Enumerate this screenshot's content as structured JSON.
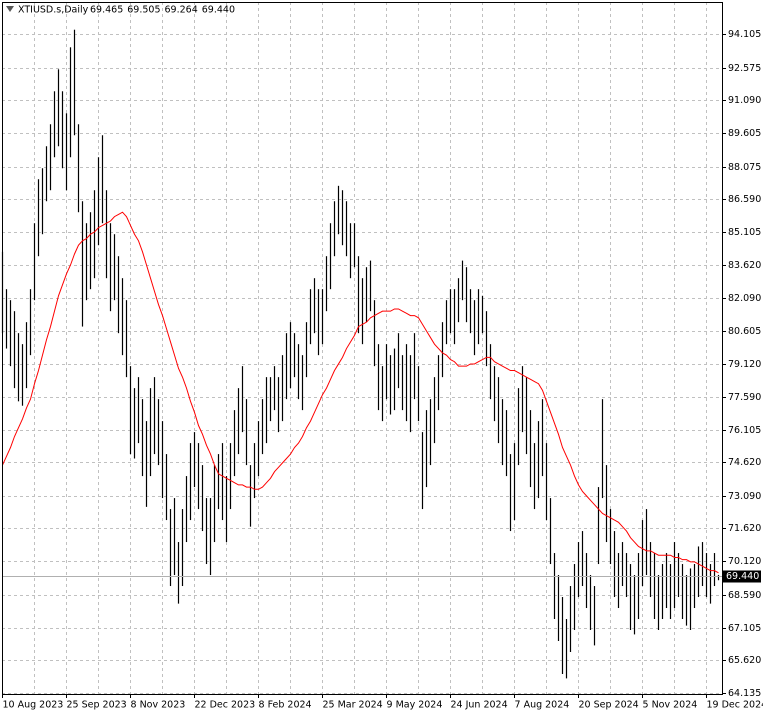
{
  "chart_data": {
    "type": "ohlc",
    "title": "XTIUSD.s,Daily",
    "ohlc_header": [
      69.465,
      69.505,
      69.264,
      {
        "value": 69.44,
        "label": "69.440"
      }
    ],
    "last_price": {
      "value": 69.44,
      "label": "69.440"
    },
    "ylim": [
      64.09,
      95.56
    ],
    "yticks": [
      94.105,
      92.575,
      {
        "value": 91.09,
        "label": "91.090"
      },
      89.605,
      88.075,
      {
        "value": 86.59,
        "label": "86.590"
      },
      85.105,
      {
        "value": 83.62,
        "label": "83.620"
      },
      {
        "value": 82.09,
        "label": "82.090"
      },
      80.605,
      {
        "value": 79.12,
        "label": "79.120"
      },
      {
        "value": 77.59,
        "label": "77.590"
      },
      76.105,
      {
        "value": 74.62,
        "label": "74.620"
      },
      {
        "value": 73.09,
        "label": "73.090"
      },
      {
        "value": 71.62,
        "label": "71.620"
      },
      {
        "value": 70.12,
        "label": "70.120"
      },
      {
        "value": 68.59,
        "label": "68.590"
      },
      67.105,
      {
        "value": 65.62,
        "label": "65.620"
      },
      64.135
    ],
    "grid": true,
    "bar_color": "#000000",
    "categories": [
      "10 Aug 2023",
      null,
      null,
      null,
      null,
      null,
      null,
      null,
      null,
      null,
      null,
      null,
      null,
      null,
      null,
      null,
      "25 Sep 2023",
      null,
      null,
      null,
      null,
      null,
      null,
      null,
      null,
      null,
      null,
      null,
      null,
      null,
      null,
      null,
      "8 Nov 2023",
      null,
      null,
      null,
      null,
      null,
      null,
      null,
      null,
      null,
      null,
      null,
      null,
      null,
      null,
      null,
      "22 Dec 2023",
      null,
      null,
      null,
      null,
      null,
      null,
      null,
      null,
      null,
      null,
      null,
      null,
      null,
      null,
      null,
      "8 Feb 2024",
      null,
      null,
      null,
      null,
      null,
      null,
      null,
      null,
      null,
      null,
      null,
      null,
      null,
      null,
      null,
      "25 Mar 2024",
      null,
      null,
      null,
      null,
      null,
      null,
      null,
      null,
      null,
      null,
      null,
      null,
      null,
      null,
      null,
      "9 May 2024",
      null,
      null,
      null,
      null,
      null,
      null,
      null,
      null,
      null,
      null,
      null,
      null,
      null,
      null,
      null,
      "24 Jun 2024",
      null,
      null,
      null,
      null,
      null,
      null,
      null,
      null,
      null,
      null,
      null,
      null,
      null,
      null,
      null,
      "7 Aug 2024",
      null,
      null,
      null,
      null,
      null,
      null,
      null,
      null,
      null,
      null,
      null,
      null,
      null,
      null,
      null,
      "20 Sep 2024",
      null,
      null,
      null,
      null,
      null,
      null,
      null,
      null,
      null,
      null,
      null,
      null,
      null,
      null,
      null,
      "5 Nov 2024",
      null,
      null,
      null,
      null,
      null,
      null,
      null,
      null,
      null,
      null,
      null,
      null,
      null,
      null,
      null,
      "19 Dec 2024",
      null,
      null,
      null
    ],
    "lows": [
      80.5,
      79.8,
      79.0,
      78.0,
      77.4,
      77.2,
      78.0,
      79.5,
      82.0,
      84.0,
      85.0,
      86.5,
      87.0,
      88.5,
      89.0,
      88.0,
      87.0,
      88.5,
      89.5,
      86.0,
      80.8,
      82.0,
      82.5,
      83.0,
      84.5,
      85.5,
      83.0,
      81.5,
      82.0,
      80.5,
      79.5,
      78.5,
      75.0,
      74.8,
      75.5,
      74.0,
      72.6,
      74.0,
      75.0,
      74.5,
      73.0,
      72.0,
      69.0,
      69.5,
      68.2,
      69.0,
      71.0,
      72.0,
      73.5,
      72.5,
      71.5,
      70.0,
      69.5,
      71.0,
      72.5,
      72.0,
      71.0,
      72.5,
      74.0,
      75.0,
      76.0,
      74.5,
      71.7,
      73.0,
      74.0,
      75.0,
      75.5,
      76.5,
      77.0,
      76.0,
      76.5,
      77.5,
      78.0,
      78.5,
      77.5,
      77.0,
      78.5,
      80.0,
      80.5,
      79.5,
      80.0,
      81.5,
      82.5,
      84.0,
      85.0,
      84.5,
      84.0,
      83.0,
      83.5,
      80.5,
      80.0,
      81.0,
      81.5,
      79.0,
      77.0,
      76.5,
      77.5,
      76.8,
      77.0,
      78.0,
      77.0,
      76.5,
      76.0,
      77.5,
      76.5,
      72.5,
      73.5,
      74.5,
      75.5,
      77.0,
      78.5,
      80.0,
      80.5,
      80.0,
      81.0,
      82.0,
      81.0,
      80.5,
      79.5,
      80.0,
      80.5,
      79.0,
      77.5,
      76.5,
      75.5,
      74.5,
      74.0,
      71.5,
      72.0,
      74.5,
      76.0,
      75.0,
      73.5,
      72.5,
      73.0,
      74.0,
      72.0,
      70.0,
      67.5,
      66.5,
      65.0,
      64.8,
      66.0,
      67.0,
      68.5,
      69.0,
      68.0,
      67.0,
      66.3,
      70.0,
      73.0,
      71.0,
      70.0,
      68.5,
      68.0,
      69.0,
      68.5,
      67.0,
      66.8,
      67.5,
      69.0,
      69.5,
      68.5,
      67.5,
      67.0,
      67.5,
      68.0,
      67.5,
      68.0,
      68.5,
      67.5,
      67.2,
      67.0,
      68.0,
      68.5,
      69.0,
      68.5,
      68.2,
      69.0,
      69.264
    ],
    "highs": [
      84.2,
      82.5,
      82.0,
      81.5,
      80.5,
      80.0,
      81.0,
      82.5,
      85.5,
      87.5,
      88.0,
      89.0,
      90.0,
      91.5,
      92.5,
      91.5,
      90.5,
      93.5,
      94.3,
      90.0,
      86.5,
      85.5,
      86.0,
      87.0,
      88.5,
      89.5,
      87.0,
      85.5,
      85.0,
      84.0,
      83.0,
      82.0,
      79.0,
      78.0,
      78.5,
      77.5,
      76.5,
      78.0,
      78.5,
      77.5,
      76.5,
      75.0,
      72.5,
      73.0,
      71.0,
      72.5,
      74.0,
      75.5,
      76.0,
      75.5,
      74.5,
      73.0,
      73.0,
      74.5,
      75.0,
      75.5,
      74.0,
      75.5,
      77.0,
      78.0,
      79.0,
      77.5,
      74.5,
      75.5,
      76.5,
      77.5,
      78.5,
      78.5,
      79.0,
      78.5,
      79.5,
      80.5,
      81.0,
      80.5,
      80.0,
      79.5,
      81.0,
      82.5,
      83.0,
      82.5,
      82.5,
      84.0,
      85.5,
      86.5,
      87.2,
      87.0,
      86.5,
      85.5,
      85.5,
      84.0,
      83.0,
      83.5,
      83.8,
      82.0,
      80.0,
      79.0,
      80.0,
      79.5,
      79.8,
      80.5,
      79.5,
      80.0,
      79.5,
      80.5,
      79.0,
      76.0,
      77.0,
      77.5,
      78.5,
      79.5,
      81.0,
      82.0,
      82.5,
      82.5,
      83.0,
      83.8,
      83.5,
      82.5,
      82.0,
      82.5,
      82.2,
      81.5,
      80.0,
      79.0,
      78.5,
      77.5,
      77.0,
      75.0,
      75.5,
      78.0,
      79.0,
      78.5,
      77.0,
      75.5,
      76.5,
      77.5,
      75.5,
      73.0,
      70.5,
      69.5,
      68.5,
      67.5,
      69.0,
      70.0,
      71.0,
      71.5,
      70.5,
      69.5,
      69.0,
      73.5,
      77.5,
      74.5,
      72.5,
      71.5,
      70.5,
      71.0,
      70.5,
      70.0,
      69.5,
      70.5,
      72.0,
      72.5,
      71.0,
      70.5,
      69.5,
      70.0,
      70.5,
      70.0,
      71.0,
      70.5,
      70.0,
      69.5,
      69.8,
      70.0,
      70.8,
      71.0,
      70.5,
      70.0,
      70.5,
      69.505
    ],
    "ma": {
      "color": "#ff0000",
      "values": [
        74.5,
        74.9,
        75.3,
        75.8,
        76.2,
        76.6,
        77.1,
        77.5,
        78.2,
        78.8,
        79.5,
        80.2,
        80.8,
        81.5,
        82.2,
        82.7,
        83.2,
        83.6,
        84.1,
        84.5,
        84.7,
        84.8,
        85.0,
        85.1,
        85.3,
        85.4,
        85.5,
        85.6,
        85.8,
        85.9,
        86.0,
        85.8,
        85.4,
        85.0,
        84.7,
        84.2,
        83.6,
        83.0,
        82.4,
        81.8,
        81.3,
        80.7,
        80.1,
        79.5,
        78.9,
        78.5,
        78.0,
        77.4,
        76.9,
        76.3,
        75.9,
        75.4,
        75.0,
        74.5,
        74.1,
        74.0,
        73.9,
        73.8,
        73.7,
        73.6,
        73.6,
        73.5,
        73.5,
        73.4,
        73.4,
        73.5,
        73.7,
        73.9,
        74.2,
        74.4,
        74.6,
        74.8,
        75.0,
        75.3,
        75.5,
        75.8,
        76.2,
        76.5,
        76.9,
        77.3,
        77.7,
        78.0,
        78.4,
        78.8,
        79.1,
        79.4,
        79.8,
        80.1,
        80.4,
        80.8,
        80.9,
        81.0,
        81.2,
        81.3,
        81.4,
        81.5,
        81.5,
        81.5,
        81.6,
        81.6,
        81.5,
        81.4,
        81.3,
        81.3,
        81.2,
        80.9,
        80.6,
        80.3,
        80.0,
        79.8,
        79.6,
        79.5,
        79.3,
        79.2,
        79.0,
        79.0,
        79.0,
        79.1,
        79.1,
        79.2,
        79.3,
        79.4,
        79.4,
        79.2,
        79.1,
        79.0,
        78.9,
        78.8,
        78.8,
        78.7,
        78.6,
        78.5,
        78.4,
        78.3,
        78.2,
        77.9,
        77.4,
        76.9,
        76.4,
        75.9,
        75.3,
        74.9,
        74.5,
        74.0,
        73.6,
        73.3,
        73.1,
        72.9,
        72.7,
        72.5,
        72.3,
        72.2,
        72.1,
        72.0,
        71.9,
        71.7,
        71.5,
        71.2,
        71.0,
        70.8,
        70.7,
        70.6,
        70.6,
        70.5,
        70.4,
        70.4,
        70.4,
        70.4,
        70.3,
        70.3,
        70.2,
        70.2,
        70.1,
        70.1,
        70.0,
        69.9,
        69.8,
        69.7,
        69.7,
        69.6
      ]
    }
  }
}
